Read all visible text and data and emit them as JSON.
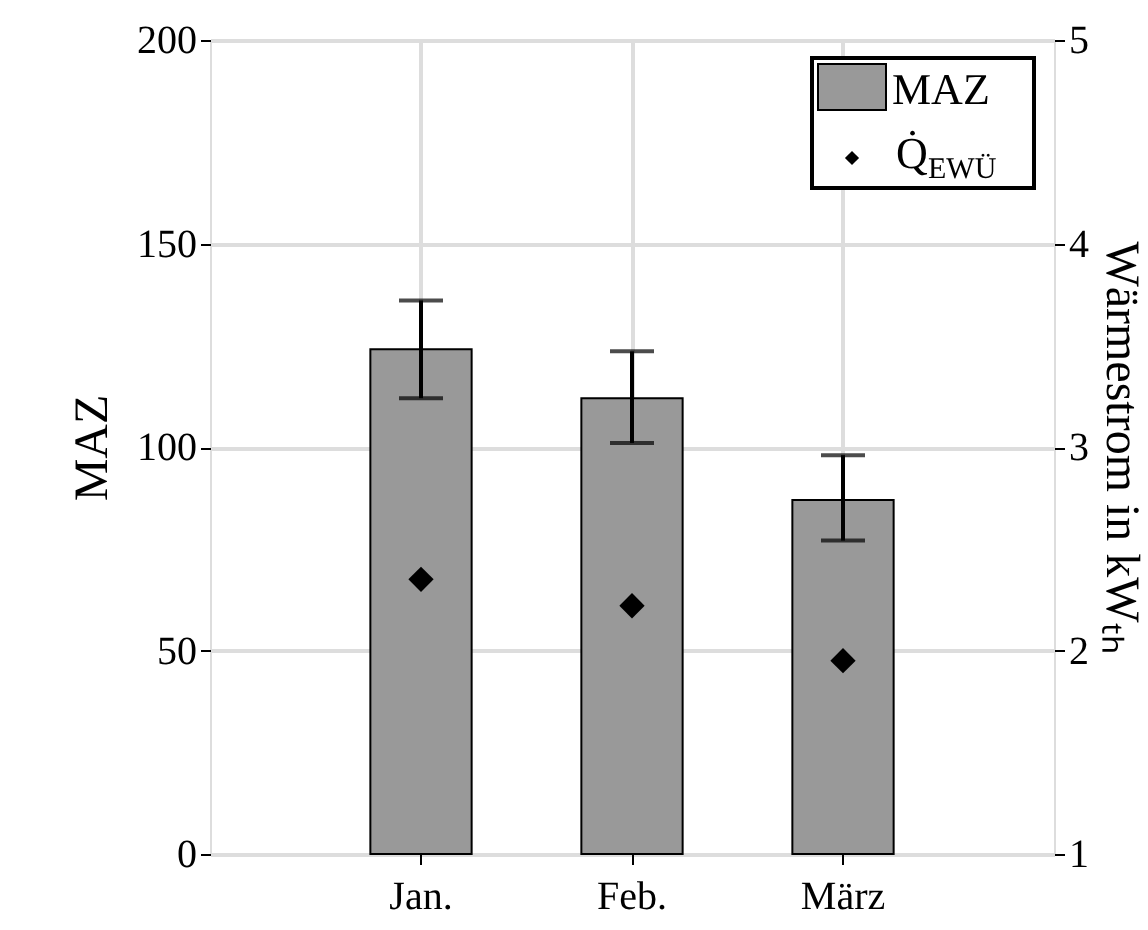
{
  "chart_data": {
    "type": "bar",
    "categories": [
      "Jan.",
      "Feb.",
      "März"
    ],
    "ylabel": "MAZ",
    "y2label": "Wärmestrom in kWₜₕ",
    "ylim": [
      0,
      200
    ],
    "yticks": [
      0,
      50,
      100,
      150,
      200
    ],
    "y2lim": [
      1,
      5
    ],
    "y2ticks": [
      1,
      2,
      3,
      4,
      5
    ],
    "grid": true,
    "legend": "top right",
    "series": [
      {
        "name": "MAZ",
        "color": "#999999",
        "values": [
          124,
          112,
          87
        ],
        "errors": [
          [
            112,
            136
          ],
          [
            101,
            123.5
          ],
          [
            77,
            98
          ]
        ]
      },
      {
        "name": "Q̇$_{EWÜ}$",
        "type": "scatter",
        "axis": "y2",
        "marker": "diamond",
        "color": "#000000",
        "values": [
          2.35,
          2.22,
          1.95
        ]
      }
    ]
  }
}
